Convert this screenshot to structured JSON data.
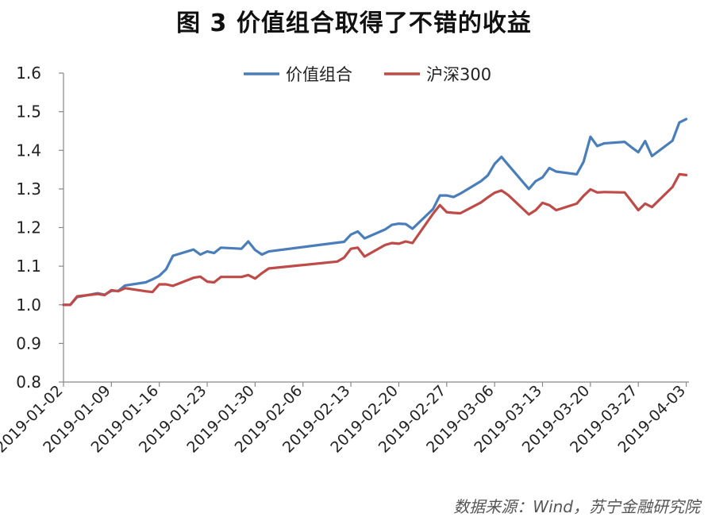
{
  "title": "图 3  价值组合取得了不错的收益",
  "source": "数据来源：Wind，苏宁金融研究院",
  "chart_data": {
    "type": "line",
    "title": "图 3  价值组合取得了不错的收益",
    "xlabel": "",
    "ylabel": "",
    "ylim": [
      0.8,
      1.6
    ],
    "yticks": [
      "1.6",
      "1.5",
      "1.4",
      "1.3",
      "1.2",
      "1.1",
      "1.0",
      "0.9",
      "0.8"
    ],
    "xticks": [
      "2019-01-02",
      "2019-01-09",
      "2019-01-16",
      "2019-01-23",
      "2019-01-30",
      "2019-02-06",
      "2019-02-13",
      "2019-02-20",
      "2019-02-27",
      "2019-03-06",
      "2019-03-13",
      "2019-03-20",
      "2019-03-27",
      "2019-04-03"
    ],
    "legend_position": "top",
    "grid": false,
    "x": [
      "2019-01-02",
      "2019-01-03",
      "2019-01-04",
      "2019-01-07",
      "2019-01-08",
      "2019-01-09",
      "2019-01-10",
      "2019-01-11",
      "2019-01-14",
      "2019-01-15",
      "2019-01-16",
      "2019-01-17",
      "2019-01-18",
      "2019-01-21",
      "2019-01-22",
      "2019-01-23",
      "2019-01-24",
      "2019-01-25",
      "2019-01-28",
      "2019-01-29",
      "2019-01-30",
      "2019-01-31",
      "2019-02-01",
      "2019-02-11",
      "2019-02-12",
      "2019-02-13",
      "2019-02-14",
      "2019-02-15",
      "2019-02-18",
      "2019-02-19",
      "2019-02-20",
      "2019-02-21",
      "2019-02-22",
      "2019-02-25",
      "2019-02-26",
      "2019-02-27",
      "2019-02-28",
      "2019-03-01",
      "2019-03-04",
      "2019-03-05",
      "2019-03-06",
      "2019-03-07",
      "2019-03-08",
      "2019-03-11",
      "2019-03-12",
      "2019-03-13",
      "2019-03-14",
      "2019-03-15",
      "2019-03-18",
      "2019-03-19",
      "2019-03-20",
      "2019-03-21",
      "2019-03-22",
      "2019-03-25",
      "2019-03-26",
      "2019-03-27",
      "2019-03-28",
      "2019-03-29",
      "2019-04-01",
      "2019-04-02",
      "2019-04-03"
    ],
    "series": [
      {
        "name": "价值组合",
        "color": "#4a7ebb",
        "values": [
          1.0,
          1.0,
          1.02,
          1.03,
          1.026,
          1.036,
          1.036,
          1.05,
          1.058,
          1.066,
          1.075,
          1.092,
          1.127,
          1.143,
          1.13,
          1.138,
          1.134,
          1.148,
          1.145,
          1.164,
          1.142,
          1.13,
          1.138,
          1.161,
          1.163,
          1.182,
          1.19,
          1.172,
          1.195,
          1.207,
          1.21,
          1.209,
          1.197,
          1.248,
          1.283,
          1.283,
          1.279,
          1.288,
          1.32,
          1.335,
          1.365,
          1.383,
          1.362,
          1.3,
          1.32,
          1.33,
          1.354,
          1.345,
          1.338,
          1.37,
          1.435,
          1.411,
          1.418,
          1.422,
          1.408,
          1.395,
          1.424,
          1.385,
          1.425,
          1.472,
          1.481
        ]
      },
      {
        "name": "沪深300",
        "color": "#be4b48",
        "values": [
          1.0,
          1.0,
          1.022,
          1.028,
          1.025,
          1.038,
          1.035,
          1.043,
          1.035,
          1.033,
          1.053,
          1.053,
          1.049,
          1.07,
          1.073,
          1.06,
          1.058,
          1.072,
          1.072,
          1.077,
          1.068,
          1.082,
          1.094,
          1.112,
          1.122,
          1.145,
          1.148,
          1.125,
          1.155,
          1.16,
          1.158,
          1.164,
          1.16,
          1.236,
          1.258,
          1.24,
          1.238,
          1.237,
          1.265,
          1.278,
          1.29,
          1.296,
          1.284,
          1.234,
          1.245,
          1.264,
          1.258,
          1.245,
          1.262,
          1.282,
          1.299,
          1.291,
          1.292,
          1.291,
          1.268,
          1.245,
          1.262,
          1.253,
          1.305,
          1.338,
          1.336
        ]
      }
    ]
  }
}
